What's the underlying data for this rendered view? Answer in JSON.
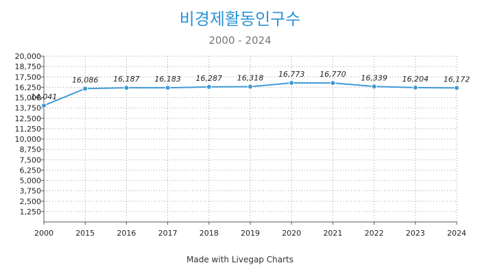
{
  "chart_data": {
    "type": "line",
    "title": "비경제활동인구수",
    "subtitle": "2000 - 2024",
    "categories": [
      "2000",
      "2015",
      "2016",
      "2017",
      "2018",
      "2019",
      "2020",
      "2021",
      "2022",
      "2023",
      "2024"
    ],
    "series": [
      {
        "name": "비경제활동인구수",
        "values": [
          14041,
          16086,
          16187,
          16183,
          16287,
          16318,
          16773,
          16770,
          16339,
          16204,
          16172
        ],
        "labels": [
          "14,041",
          "16,086",
          "16,187",
          "16,183",
          "16,287",
          "16,318",
          "16,773",
          "16,770",
          "16,339",
          "16,204",
          "16,172"
        ],
        "color": "#3d9ad6"
      }
    ],
    "ylim": [
      0,
      20000
    ],
    "yticks": [
      1250,
      2500,
      3750,
      5000,
      6250,
      7500,
      8750,
      10000,
      11250,
      12500,
      13750,
      15000,
      16250,
      17500,
      18750,
      20000
    ],
    "ytick_labels": [
      "1,250",
      "2,500",
      "3,750",
      "5,000",
      "6,250",
      "7,500",
      "8,750",
      "10,000",
      "11,250",
      "12,500",
      "13,750",
      "15,000",
      "16,250",
      "17,500",
      "18,750",
      "20,000"
    ],
    "xlabel": "",
    "ylabel": "",
    "grid": true,
    "legend": "none"
  },
  "footer": {
    "credit": "Made with Livegap Charts"
  }
}
